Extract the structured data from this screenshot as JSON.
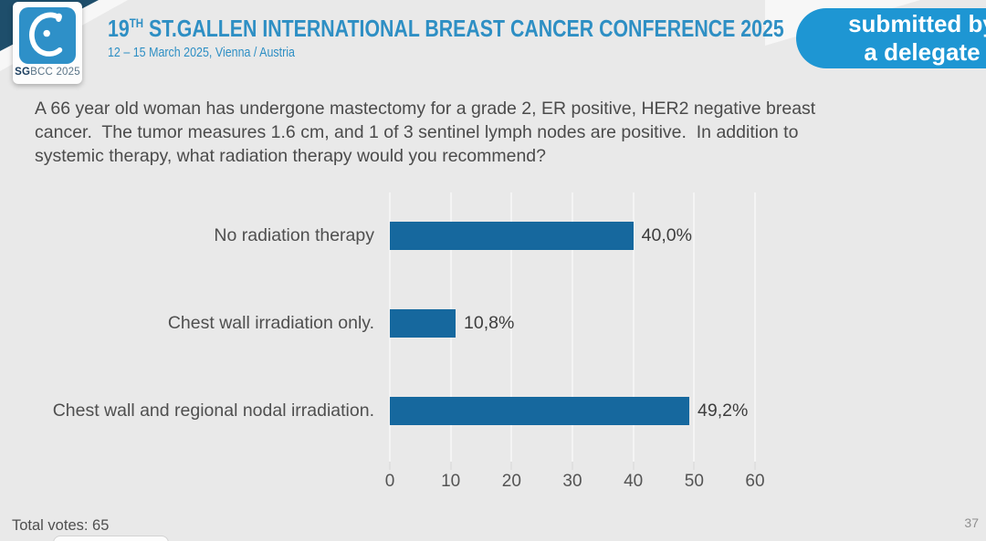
{
  "header": {
    "logo": {
      "sg": "SG",
      "rest": "BCC 2025"
    },
    "title_number": "19",
    "title_sup": "TH",
    "title_rest": " ST.GALLEN INTERNATIONAL BREAST CANCER CONFERENCE 2025",
    "subtitle": "12 – 15 March 2025, Vienna / Austria",
    "badge": {
      "line1": "submitted by",
      "line2": "a delegate"
    }
  },
  "question": {
    "lines": [
      "A 66 year old woman has undergone mastectomy for a grade 2, ER positive, HER2 negative breast",
      "cancer.  The tumor measures 1.6 cm, and 1 of 3 sentinel lymph nodes are positive.  In addition to",
      "systemic therapy, what radiation therapy would you recommend?"
    ]
  },
  "chart_data": {
    "type": "bar",
    "orientation": "horizontal",
    "categories": [
      "No radiation therapy",
      "Chest wall irradiation only.",
      "Chest wall and regional nodal irradiation."
    ],
    "values": [
      40.0,
      10.8,
      49.2
    ],
    "value_labels": [
      "40,0%",
      "10,8%",
      "49,2%"
    ],
    "xlim": [
      0,
      60
    ],
    "xticks": [
      "0",
      "10",
      "20",
      "30",
      "40",
      "50",
      "60"
    ],
    "bar_color": "#16689e",
    "grid": true,
    "legend_position": "none",
    "title": ""
  },
  "footer": {
    "total_votes": "Total votes: 65",
    "page_number": "37"
  },
  "colors": {
    "background": "#e9e9e9",
    "accent_blue": "#2e8fc4",
    "badge_blue": "#1e96d3",
    "bar_blue": "#16689e",
    "corner_navy": "#1e4e6b",
    "question_text": "#4b4b4b"
  }
}
